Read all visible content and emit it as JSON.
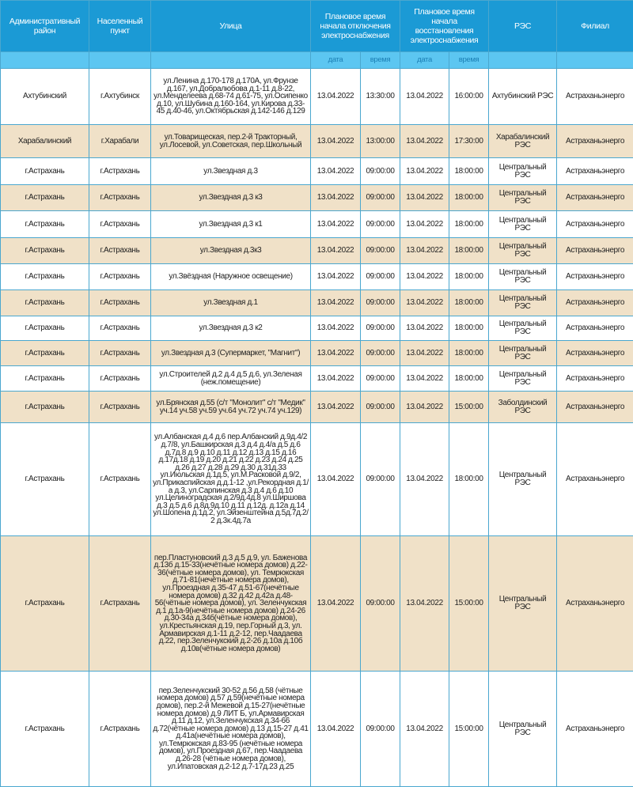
{
  "header": {
    "district": "Административный район",
    "locality": "Населенный пункт",
    "street": "Улица",
    "off_time": "Плановое время начала отключения электроснабжения",
    "on_time": "Плановое время начала восстановления электроснабжения",
    "res": "РЭС",
    "branch": "Филиал",
    "date": "дата",
    "time": "время"
  },
  "colors": {
    "header": "#1b9ad5",
    "subheader": "#5cc6f1",
    "row_alt": "#f0e1c8",
    "border": "#4aa7cf"
  },
  "rows": [
    {
      "district": "Ахтубинский",
      "locality": "г.Ахтубинск",
      "street": "ул.Ленина д.170-178 д.170А, ул.Фрунзе д.167, ул.Добралюбова д.1-11 д.8-22, ул.Менделеева д.68-74 д.61-75, ул.Осипенко д.10, ул.Шубина д.160-164, ул.Кирова д.33-45 д.40-46, ул.Октябрьская д.142-146 д.129",
      "off_date": "13.04.2022",
      "off_time": "13:30:00",
      "on_date": "13.04.2022",
      "on_time": "16:00:00",
      "res": "Ахтубинский РЭС",
      "branch": "Астраханьэнерго"
    },
    {
      "district": "Харабалинский",
      "locality": "г.Харабали",
      "street": "ул.Товарищеская, пер.2-й Тракторный, ул.Лосевой, ул.Советская, пер.Школьный",
      "off_date": "13.04.2022",
      "off_time": "13:00:00",
      "on_date": "13.04.2022",
      "on_time": "17:30:00",
      "res": "Харабалинский РЭС",
      "branch": "Астраханьэнерго"
    },
    {
      "district": "г.Астрахань",
      "locality": "г.Астрахань",
      "street": "ул.Звездная д.3",
      "off_date": "13.04.2022",
      "off_time": "09:00:00",
      "on_date": "13.04.2022",
      "on_time": "18:00:00",
      "res": "Центральный РЭС",
      "branch": "Астраханьэнерго"
    },
    {
      "district": "г.Астрахань",
      "locality": "г.Астрахань",
      "street": "ул.Звездная д.3 к3",
      "off_date": "13.04.2022",
      "off_time": "09:00:00",
      "on_date": "13.04.2022",
      "on_time": "18:00:00",
      "res": "Центральный РЭС",
      "branch": "Астраханьэнерго"
    },
    {
      "district": "г.Астрахань",
      "locality": "г.Астрахань",
      "street": "ул.Звездная д.3 к1",
      "off_date": "13.04.2022",
      "off_time": "09:00:00",
      "on_date": "13.04.2022",
      "on_time": "18:00:00",
      "res": "Центральный РЭС",
      "branch": "Астраханьэнерго"
    },
    {
      "district": "г.Астрахань",
      "locality": "г.Астрахань",
      "street": "ул.Звездная д.3к3",
      "off_date": "13.04.2022",
      "off_time": "09:00:00",
      "on_date": "13.04.2022",
      "on_time": "18:00:00",
      "res": "Центральный РЭС",
      "branch": "Астраханьэнерго"
    },
    {
      "district": "г.Астрахань",
      "locality": "г.Астрахань",
      "street": "ул.Звёздная (Наружное освещение)",
      "off_date": "13.04.2022",
      "off_time": "09:00:00",
      "on_date": "13.04.2022",
      "on_time": "18:00:00",
      "res": "Центральный РЭС",
      "branch": "Астраханьэнерго"
    },
    {
      "district": "г.Астрахань",
      "locality": "г.Астрахань",
      "street": "ул.Звездная д.1",
      "off_date": "13.04.2022",
      "off_time": "09:00:00",
      "on_date": "13.04.2022",
      "on_time": "18:00:00",
      "res": "Центральный РЭС",
      "branch": "Астраханьэнерго"
    },
    {
      "district": "г.Астрахань",
      "locality": "г.Астрахань",
      "street": "ул.Звездная д.3 к2",
      "off_date": "13.04.2022",
      "off_time": "09:00:00",
      "on_date": "13.04.2022",
      "on_time": "18:00:00",
      "res": "Центральный РЭС",
      "branch": "Астраханьэнерго"
    },
    {
      "district": "г.Астрахань",
      "locality": "г.Астрахань",
      "street": "ул.Звездная д.3 (Супермаркет, \"Магнит\")",
      "off_date": "13.04.2022",
      "off_time": "09:00:00",
      "on_date": "13.04.2022",
      "on_time": "18:00:00",
      "res": "Центральный РЭС",
      "branch": "Астраханьэнерго"
    },
    {
      "district": "г.Астрахань",
      "locality": "г.Астрахань",
      "street": "ул.Строителей д.2 д.4 д.5 д.6, ул.Зеленая (неж.помещение)",
      "off_date": "13.04.2022",
      "off_time": "09:00:00",
      "on_date": "13.04.2022",
      "on_time": "18:00:00",
      "res": "Центральный РЭС",
      "branch": "Астраханьэнерго"
    },
    {
      "district": "г.Астрахань",
      "locality": "г.Астрахань",
      "street": "ул.Брянская д.55 (с/т \"Монолит\" с/т \"Медик\" уч.14 уч.58 уч.59 уч.64 уч.72 уч.74 уч.129)",
      "off_date": "13.04.2022",
      "off_time": "09:00:00",
      "on_date": "13.04.2022",
      "on_time": "15:00:00",
      "res": "Заболдинский РЭС",
      "branch": "Астраханьэнерго"
    },
    {
      "district": "г.Астрахань",
      "locality": "г.Астрахань",
      "street": "ул.Албанская д.4 д.6 пер.Албанский д.9д.4/2 д.7/8, ул.Башкирская д.3 д.4 д.4/а д.5 д.6 д.7д.8 д.9 д.10 д.11 д.12 д.13 д.15 д.16 д.17д.18 д.19 д.20 д.21 д.22 д.23 д.24 д.25 д.26 д.27 д.28 д.29 д.30 д.31д.33 ул.Июльская д.1д.5, ул.М.Расковой д.9/2, ул.Прикаспийская д.д.1-12 ,ул.Рекордная д.1/а д.3, ул.Сарпинская д.3 д.4 д.6 д.10 ул.Целиноградская д.2/9д.4д.8 ул.Ширшова д.3 д.5 д.6 д.8д.9д.10 д.11 д.12д. д.12а д.14 ул.Шопена д.1д.2, ул.Эйзенштейна д.5д.7д.2/ 2 д.3к.4д.7а",
      "off_date": "13.04.2022",
      "off_time": "09:00:00",
      "on_date": "13.04.2022",
      "on_time": "18:00:00",
      "res": "Центральный РЭС",
      "branch": "Астраханьэнерго"
    },
    {
      "district": "г.Астрахань",
      "locality": "г.Астрахань",
      "street": "пер.Пластуновский д.3 д.5 д.9, ул. Баженова д.13б д.15-33(нечётные номера домов) д.22-36(чётные номера домов), ул. Темрюкская д.71-81(нечётные номера домов), ул.Проездная д.35-47 д.51-67(нечётные номера домов) д.32 д.42 д.42а д.48-56(чётные номера домов), ул. Зеленчукская д.1 д.1а-9(нечётные номера домов) д.24-26 д.30-34а д.34б(чётные номера домов), ул.Крестьянская д.19, пер.Горный д.3, ул. Армавирская д.1-11 д.2-12, пер.Чаадаева д.22, пер.Зеленчукский д.2-26 д.10а д.10б д.10в(чётные номера домов)",
      "off_date": "13.04.2022",
      "off_time": "09:00:00",
      "on_date": "13.04.2022",
      "on_time": "15:00:00",
      "res": "Центральный РЭС",
      "branch": "Астраханьэнерго"
    },
    {
      "district": "г.Астрахань",
      "locality": "г.Астрахань",
      "street": "пер.Зеленчукский 30-52 д.56 д.58 (чётные номера домов) д.57 д.59(нечётные номера домов), пер.2-й Межевой д.15-27(нечётные номера домов) д.9 ЛИТ Б, ул.Армавирская д.11 д.12, ул.Зеленчукская д.34-66 д.72(чётные номера домов) д.13 д.15-27 д.41 д.41а(нечётные номера домов), ул.Темрюкская д.83-95 (нечётные номера домов), ул.Проездная д.67, пер.Чаадаева д.26-28 (чётные номера домов), ул.Ипатовская д.2-12 д.7-17д.23 д.25",
      "off_date": "13.04.2022",
      "off_time": "09:00:00",
      "on_date": "13.04.2022",
      "on_time": "15:00:00",
      "res": "Центральный РЭС",
      "branch": "Астраханьэнерго"
    }
  ]
}
